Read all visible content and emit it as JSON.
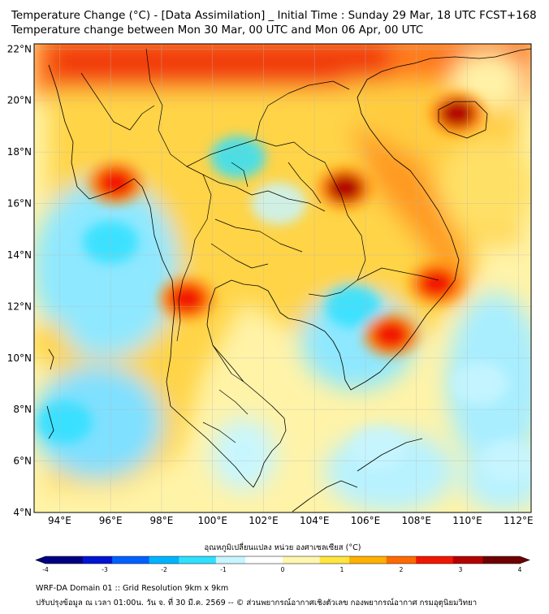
{
  "header": {
    "title_line1": "Temperature Change (°C) - [Data Assimilation] _ Initial Time : Sunday 29 Mar, 18 UTC FCST+168",
    "title_line2": "Temperature change between Mon 30 Mar, 00 UTC and Mon 06 Apr, 00 UTC"
  },
  "map": {
    "lon_ticks": [
      "94°E",
      "96°E",
      "98°E",
      "100°E",
      "102°E",
      "104°E",
      "106°E",
      "108°E",
      "110°E",
      "112°E"
    ],
    "lat_ticks": [
      "22°N",
      "20°N",
      "18°N",
      "16°N",
      "14°N",
      "12°N",
      "10°N",
      "8°N",
      "6°N",
      "4°N"
    ],
    "lon_range": [
      93,
      112.5
    ],
    "lat_range": [
      4,
      22.2
    ],
    "hot_spots": [
      {
        "lon": 109.6,
        "lat": 19.5,
        "value": 3.0
      },
      {
        "lon": 105.2,
        "lat": 16.6,
        "value": 2.9
      },
      {
        "lon": 96.2,
        "lat": 16.8,
        "value": 2.8
      },
      {
        "lon": 99.0,
        "lat": 12.3,
        "value": 2.7
      },
      {
        "lon": 107.0,
        "lat": 10.9,
        "value": 2.6
      },
      {
        "lon": 108.8,
        "lat": 12.9,
        "value": 2.4
      }
    ],
    "cool_spots": [
      {
        "lon": 96.0,
        "lat": 14.5,
        "value": -1.3
      },
      {
        "lon": 94.2,
        "lat": 7.5,
        "value": -1.2
      },
      {
        "lon": 105.5,
        "lat": 12.0,
        "value": -1.3
      },
      {
        "lon": 101.0,
        "lat": 17.8,
        "value": -1.2
      },
      {
        "lon": 110.5,
        "lat": 9.0,
        "value": -1.0
      },
      {
        "lon": 102.6,
        "lat": 16.0,
        "value": -0.8
      },
      {
        "lon": 106.5,
        "lat": 6.5,
        "value": -0.9
      },
      {
        "lon": 111.6,
        "lat": 6.0,
        "value": -0.9
      }
    ]
  },
  "colorbar": {
    "title": "อุณหภูมิเปลี่ยนแปลง หน่วย องศาเซลเซียส (°C)",
    "min": -4,
    "max": 4,
    "ticks": [
      "-4",
      "-3",
      "-2",
      "-1",
      "0",
      "1",
      "2",
      "3",
      "4"
    ],
    "colors": [
      "#00007f",
      "#0014d4",
      "#0060ff",
      "#00b4ff",
      "#30e0ff",
      "#c8f6ff",
      "#ffffff",
      "#fff7b0",
      "#ffe640",
      "#ffb000",
      "#ff6a00",
      "#f21600",
      "#b40000",
      "#6e0000"
    ]
  },
  "footer": {
    "line1": "WRF-DA Domain 01 :: Grid Resolution 9km x 9km",
    "line2": "ปรับปรุงข้อมูล ณ เวลา 01:00น. วัน จ. ที่ 30 มี.ค. 2569 -- © ส่วนพยากรณ์อากาศเชิงตัวเลข กองพยากรณ์อากาศ กรมอุตุนิยมวิทยา"
  }
}
